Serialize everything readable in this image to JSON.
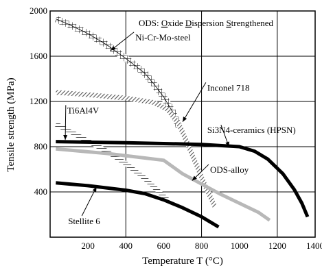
{
  "chart_data": {
    "type": "line",
    "title_parts": [
      {
        "text": "ODS: ",
        "underline": false
      },
      {
        "text": "O",
        "underline": true
      },
      {
        "text": "xide ",
        "underline": false
      },
      {
        "text": "D",
        "underline": true
      },
      {
        "text": "ispersion ",
        "underline": false
      },
      {
        "text": "S",
        "underline": true
      },
      {
        "text": "trengthened",
        "underline": false
      }
    ],
    "xlabel": "Temperature T (°C)",
    "ylabel": "Tensile strength (MPa)",
    "xlim": [
      0,
      1400
    ],
    "ylim": [
      0,
      2000
    ],
    "xticks": [
      200,
      400,
      600,
      800,
      1000,
      1200,
      1400
    ],
    "yticks": [
      400,
      800,
      1200,
      1600,
      2000
    ],
    "grid": true,
    "series": [
      {
        "name": "Ni-Cr-Mo-steel",
        "style": "cross-hatch",
        "color": "#000000",
        "points": [
          [
            30,
            1930
          ],
          [
            100,
            1880
          ],
          [
            200,
            1800
          ],
          [
            300,
            1700
          ],
          [
            400,
            1580
          ],
          [
            500,
            1450
          ],
          [
            550,
            1350
          ],
          [
            600,
            1240
          ],
          [
            650,
            1100
          ],
          [
            680,
            980
          ]
        ]
      },
      {
        "name": "Inconel 718",
        "style": "hatched",
        "color": "#555555",
        "points": [
          [
            30,
            1280
          ],
          [
            200,
            1260
          ],
          [
            400,
            1230
          ],
          [
            550,
            1190
          ],
          [
            620,
            1130
          ],
          [
            680,
            1000
          ],
          [
            720,
            850
          ],
          [
            770,
            650
          ],
          [
            820,
            450
          ],
          [
            870,
            270
          ]
        ]
      },
      {
        "name": "Ti6Al4V",
        "style": "hatched",
        "color": "#333333",
        "points": [
          [
            30,
            1000
          ],
          [
            100,
            940
          ],
          [
            200,
            850
          ],
          [
            300,
            760
          ],
          [
            400,
            650
          ],
          [
            500,
            520
          ],
          [
            570,
            410
          ],
          [
            620,
            330
          ]
        ]
      },
      {
        "name": "Si3N4-ceramics (HPSN)",
        "style": "thick",
        "color": "#000000",
        "points": [
          [
            30,
            845
          ],
          [
            400,
            835
          ],
          [
            800,
            820
          ],
          [
            1000,
            800
          ],
          [
            1080,
            760
          ],
          [
            1150,
            690
          ],
          [
            1230,
            560
          ],
          [
            1290,
            420
          ],
          [
            1330,
            300
          ],
          [
            1360,
            180
          ]
        ]
      },
      {
        "name": "ODS-alloy",
        "style": "gray",
        "color": "#b8b8b8",
        "points": [
          [
            30,
            780
          ],
          [
            300,
            740
          ],
          [
            500,
            700
          ],
          [
            600,
            680
          ],
          [
            700,
            560
          ],
          [
            800,
            470
          ],
          [
            900,
            380
          ],
          [
            1000,
            300
          ],
          [
            1100,
            220
          ],
          [
            1160,
            150
          ]
        ]
      },
      {
        "name": "Stellite 6",
        "style": "thick",
        "color": "#000000",
        "points": [
          [
            30,
            480
          ],
          [
            200,
            455
          ],
          [
            400,
            415
          ],
          [
            500,
            385
          ],
          [
            600,
            330
          ],
          [
            700,
            260
          ],
          [
            800,
            180
          ],
          [
            890,
            90
          ]
        ]
      }
    ],
    "annotations": [
      {
        "text": "Ni-Cr-Mo-steel",
        "x": 450,
        "y": 1740,
        "arrow_to": [
          320,
          1650
        ]
      },
      {
        "text": "Inconel 718",
        "x": 830,
        "y": 1295,
        "arrow_to": [
          700,
          1020
        ]
      },
      {
        "text": "Ti6Al4V",
        "x": 90,
        "y": 1095,
        "arrow_to": [
          80,
          860
        ]
      },
      {
        "text": "Si3N4-ceramics (HPSN)",
        "x": 830,
        "y": 920,
        "arrow_to": [
          945,
          800
        ]
      },
      {
        "text": "ODS-alloy",
        "x": 845,
        "y": 570,
        "arrow_to": [
          750,
          500
        ]
      },
      {
        "text": "Stellite 6",
        "x": 95,
        "y": 115,
        "arrow_to": [
          245,
          445
        ]
      }
    ]
  }
}
